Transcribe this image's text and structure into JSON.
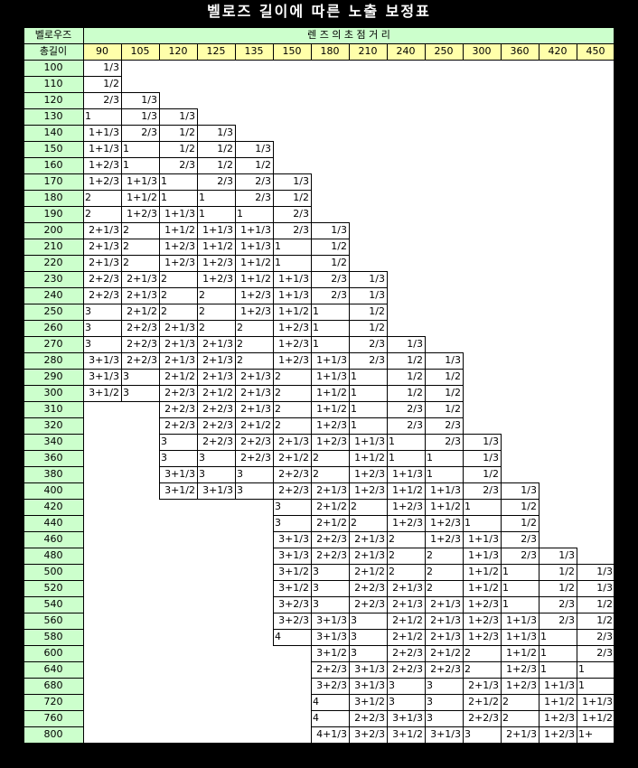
{
  "title": "벨로즈 길이에 따른 노출 보정표",
  "header": {
    "corner_top": "벨로우즈",
    "corner_bottom": "총길이",
    "lens_label": "렌 즈 의 초 점 거 리"
  },
  "focal_lengths": [
    "90",
    "105",
    "120",
    "125",
    "135",
    "150",
    "180",
    "210",
    "240",
    "250",
    "300",
    "360",
    "420",
    "450"
  ],
  "bellows_lengths": [
    "100",
    "110",
    "120",
    "130",
    "140",
    "150",
    "160",
    "170",
    "180",
    "190",
    "200",
    "210",
    "220",
    "230",
    "240",
    "250",
    "260",
    "270",
    "280",
    "290",
    "300",
    "310",
    "320",
    "340",
    "360",
    "380",
    "400",
    "420",
    "440",
    "460",
    "480",
    "500",
    "520",
    "540",
    "560",
    "580",
    "600",
    "640",
    "680",
    "720",
    "760",
    "800"
  ],
  "rows": [
    [
      "1/3",
      "",
      "",
      "",
      "",
      "",
      "",
      "",
      "",
      "",
      "",
      "",
      "",
      ""
    ],
    [
      "1/2",
      "",
      "",
      "",
      "",
      "",
      "",
      "",
      "",
      "",
      "",
      "",
      "",
      ""
    ],
    [
      "2/3",
      "1/3",
      "",
      "",
      "",
      "",
      "",
      "",
      "",
      "",
      "",
      "",
      "",
      ""
    ],
    [
      "1",
      "1/3",
      "1/3",
      "",
      "",
      "",
      "",
      "",
      "",
      "",
      "",
      "",
      "",
      ""
    ],
    [
      "1+1/3",
      "2/3",
      "1/2",
      "1/3",
      "",
      "",
      "",
      "",
      "",
      "",
      "",
      "",
      "",
      ""
    ],
    [
      "1+1/3",
      "1",
      "1/2",
      "1/2",
      "1/3",
      "",
      "",
      "",
      "",
      "",
      "",
      "",
      "",
      ""
    ],
    [
      "1+2/3",
      "1",
      "2/3",
      "1/2",
      "1/2",
      "",
      "",
      "",
      "",
      "",
      "",
      "",
      "",
      ""
    ],
    [
      "1+2/3",
      "1+1/3",
      "1",
      "2/3",
      "2/3",
      "1/3",
      "",
      "",
      "",
      "",
      "",
      "",
      "",
      ""
    ],
    [
      "2",
      "1+1/2",
      "1",
      "1",
      "2/3",
      "1/2",
      "",
      "",
      "",
      "",
      "",
      "",
      "",
      ""
    ],
    [
      "2",
      "1+2/3",
      "1+1/3",
      "1",
      "1",
      "2/3",
      "",
      "",
      "",
      "",
      "",
      "",
      "",
      ""
    ],
    [
      "2+1/3",
      "2",
      "1+1/2",
      "1+1/3",
      "1+1/3",
      "2/3",
      "1/3",
      "",
      "",
      "",
      "",
      "",
      "",
      ""
    ],
    [
      "2+1/3",
      "2",
      "1+2/3",
      "1+1/2",
      "1+1/3",
      "1",
      "1/2",
      "",
      "",
      "",
      "",
      "",
      "",
      ""
    ],
    [
      "2+1/3",
      "2",
      "1+2/3",
      "1+2/3",
      "1+1/2",
      "1",
      "1/2",
      "",
      "",
      "",
      "",
      "",
      "",
      ""
    ],
    [
      "2+2/3",
      "2+1/3",
      "2",
      "1+2/3",
      "1+1/2",
      "1+1/3",
      "2/3",
      "1/3",
      "",
      "",
      "",
      "",
      "",
      ""
    ],
    [
      "2+2/3",
      "2+1/3",
      "2",
      "2",
      "1+2/3",
      "1+1/3",
      "2/3",
      "1/3",
      "",
      "",
      "",
      "",
      "",
      ""
    ],
    [
      "3",
      "2+1/2",
      "2",
      "2",
      "1+2/3",
      "1+1/2",
      "1",
      "1/2",
      "",
      "",
      "",
      "",
      "",
      ""
    ],
    [
      "3",
      "2+2/3",
      "2+1/3",
      "2",
      "2",
      "1+2/3",
      "1",
      "1/2",
      "",
      "",
      "",
      "",
      "",
      ""
    ],
    [
      "3",
      "2+2/3",
      "2+1/3",
      "2+1/3",
      "2",
      "1+2/3",
      "1",
      "2/3",
      "1/3",
      "",
      "",
      "",
      "",
      ""
    ],
    [
      "3+1/3",
      "2+2/3",
      "2+1/3",
      "2+1/3",
      "2",
      "1+2/3",
      "1+1/3",
      "2/3",
      "1/2",
      "1/3",
      "",
      "",
      "",
      ""
    ],
    [
      "3+1/3",
      "3",
      "2+1/2",
      "2+1/3",
      "2+1/3",
      "2",
      "1+1/3",
      "1",
      "1/2",
      "1/2",
      "",
      "",
      "",
      ""
    ],
    [
      "3+1/2",
      "3",
      "2+2/3",
      "2+1/2",
      "2+1/3",
      "2",
      "1+1/2",
      "1",
      "1/2",
      "1/2",
      "",
      "",
      "",
      ""
    ],
    [
      "",
      "",
      "2+2/3",
      "2+2/3",
      "2+1/3",
      "2",
      "1+1/2",
      "1",
      "2/3",
      "1/2",
      "",
      "",
      "",
      ""
    ],
    [
      "",
      "",
      "2+2/3",
      "2+2/3",
      "2+1/2",
      "2",
      "1+2/3",
      "1",
      "2/3",
      "2/3",
      "",
      "",
      "",
      ""
    ],
    [
      "",
      "",
      "3",
      "2+2/3",
      "2+2/3",
      "2+1/3",
      "1+2/3",
      "1+1/3",
      "1",
      "2/3",
      "1/3",
      "",
      "",
      ""
    ],
    [
      "",
      "",
      "3",
      "3",
      "2+2/3",
      "2+1/2",
      "2",
      "1+1/2",
      "1",
      "1",
      "1/3",
      "",
      "",
      ""
    ],
    [
      "",
      "",
      "3+1/3",
      "3",
      "3",
      "2+2/3",
      "2",
      "1+2/3",
      "1+1/3",
      "1",
      "1/2",
      "",
      "",
      ""
    ],
    [
      "",
      "",
      "3+1/2",
      "3+1/3",
      "3",
      "2+2/3",
      "2+1/3",
      "1+2/3",
      "1+1/2",
      "1+1/3",
      "2/3",
      "1/3",
      "",
      ""
    ],
    [
      "",
      "",
      "",
      "",
      "",
      "3",
      "2+1/2",
      "2",
      "1+2/3",
      "1+1/2",
      "1",
      "1/2",
      "",
      ""
    ],
    [
      "",
      "",
      "",
      "",
      "",
      "3",
      "2+1/2",
      "2",
      "1+2/3",
      "1+2/3",
      "1",
      "1/2",
      "",
      ""
    ],
    [
      "",
      "",
      "",
      "",
      "",
      "3+1/3",
      "2+2/3",
      "2+1/3",
      "2",
      "1+2/3",
      "1+1/3",
      "2/3",
      "",
      ""
    ],
    [
      "",
      "",
      "",
      "",
      "",
      "3+1/3",
      "2+2/3",
      "2+1/3",
      "2",
      "2",
      "1+1/3",
      "2/3",
      "1/3",
      ""
    ],
    [
      "",
      "",
      "",
      "",
      "",
      "3+1/2",
      "3",
      "2+1/2",
      "2",
      "2",
      "1+1/2",
      "1",
      "1/2",
      "1/3"
    ],
    [
      "",
      "",
      "",
      "",
      "",
      "3+1/2",
      "3",
      "2+2/3",
      "2+1/3",
      "2",
      "1+1/2",
      "1",
      "1/2",
      "1/3"
    ],
    [
      "",
      "",
      "",
      "",
      "",
      "3+2/3",
      "3",
      "2+2/3",
      "2+1/3",
      "2+1/3",
      "1+2/3",
      "1",
      "2/3",
      "1/2"
    ],
    [
      "",
      "",
      "",
      "",
      "",
      "3+2/3",
      "3+1/3",
      "3",
      "2+1/2",
      "2+1/3",
      "1+2/3",
      "1+1/3",
      "2/3",
      "1/2"
    ],
    [
      "",
      "",
      "",
      "",
      "",
      "4",
      "3+1/3",
      "3",
      "2+1/2",
      "2+1/3",
      "1+2/3",
      "1+1/3",
      "1",
      "2/3"
    ],
    [
      "",
      "",
      "",
      "",
      "",
      "",
      "3+1/2",
      "3",
      "2+2/3",
      "2+1/2",
      "2",
      "1+1/2",
      "1",
      "2/3"
    ],
    [
      "",
      "",
      "",
      "",
      "",
      "",
      "2+2/3",
      "3+1/3",
      "2+2/3",
      "2+2/3",
      "2",
      "1+2/3",
      "1",
      "1"
    ],
    [
      "",
      "",
      "",
      "",
      "",
      "",
      "3+2/3",
      "3+1/3",
      "3",
      "3",
      "2+1/3",
      "1+2/3",
      "1+1/3",
      "1"
    ],
    [
      "",
      "",
      "",
      "",
      "",
      "",
      "4",
      "3+1/2",
      "3",
      "3",
      "2+1/2",
      "2",
      "1+1/2",
      "1+1/3"
    ],
    [
      "",
      "",
      "",
      "",
      "",
      "",
      "4",
      "2+2/3",
      "3+1/3",
      "3",
      "2+2/3",
      "2",
      "1+2/3",
      "1+1/2"
    ],
    [
      "",
      "",
      "",
      "",
      "",
      "",
      "4+1/3",
      "3+2/3",
      "3+1/2",
      "3+1/3",
      "3",
      "2+1/3",
      "1+2/3",
      "1+"
    ]
  ]
}
